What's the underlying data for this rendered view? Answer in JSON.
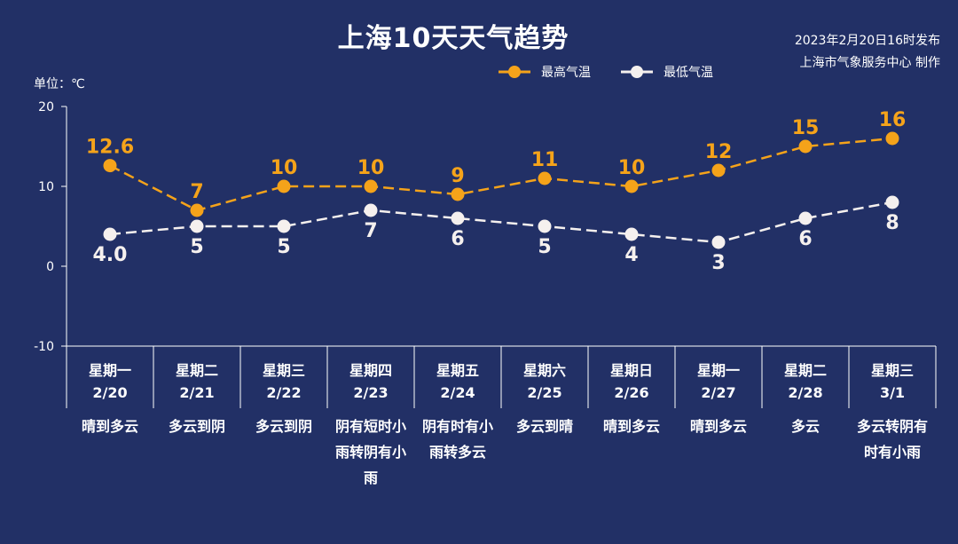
{
  "header": {
    "title": "上海10天天气趋势",
    "publish_line1": "2023年2月20日16时发布",
    "publish_line2": "上海市气象服务中心 制作",
    "unit": "单位：℃"
  },
  "colors": {
    "background": "#223066",
    "high": "#f5a31a",
    "low": "#f5f0ee",
    "axis": "#ffffff"
  },
  "chart_data": {
    "type": "line",
    "categories": [
      "2/20",
      "2/21",
      "2/22",
      "2/23",
      "2/24",
      "2/25",
      "2/26",
      "2/27",
      "2/28",
      "3/1"
    ],
    "weekdays": [
      "星期一",
      "星期二",
      "星期三",
      "星期四",
      "星期五",
      "星期六",
      "星期日",
      "星期一",
      "星期二",
      "星期三"
    ],
    "weather": [
      "晴到多云",
      "多云到阴",
      "多云到阴",
      "阴有短时小雨转阴有小雨",
      "阴有时有小雨转多云",
      "多云到晴",
      "晴到多云",
      "晴到多云",
      "多云",
      "多云转阴有时有小雨"
    ],
    "series": [
      {
        "name": "最高气温",
        "values": [
          12.6,
          7,
          10,
          10,
          9,
          11,
          10,
          12,
          15,
          16
        ],
        "labels": [
          "12.6",
          "7",
          "10",
          "10",
          "9",
          "11",
          "10",
          "12",
          "15",
          "16"
        ],
        "color": "#f5a31a"
      },
      {
        "name": "最低气温",
        "values": [
          4.0,
          5,
          5,
          7,
          6,
          5,
          4,
          3,
          6,
          8
        ],
        "labels": [
          "4.0",
          "5",
          "5",
          "7",
          "6",
          "5",
          "4",
          "3",
          "6",
          "8"
        ],
        "color": "#f5f0ee"
      }
    ],
    "ylim": [
      -10,
      20
    ],
    "yticks": [
      20,
      10,
      0,
      -10
    ],
    "title": "上海10天天气趋势",
    "ylabel": "单位：℃",
    "legend": "top-right"
  }
}
